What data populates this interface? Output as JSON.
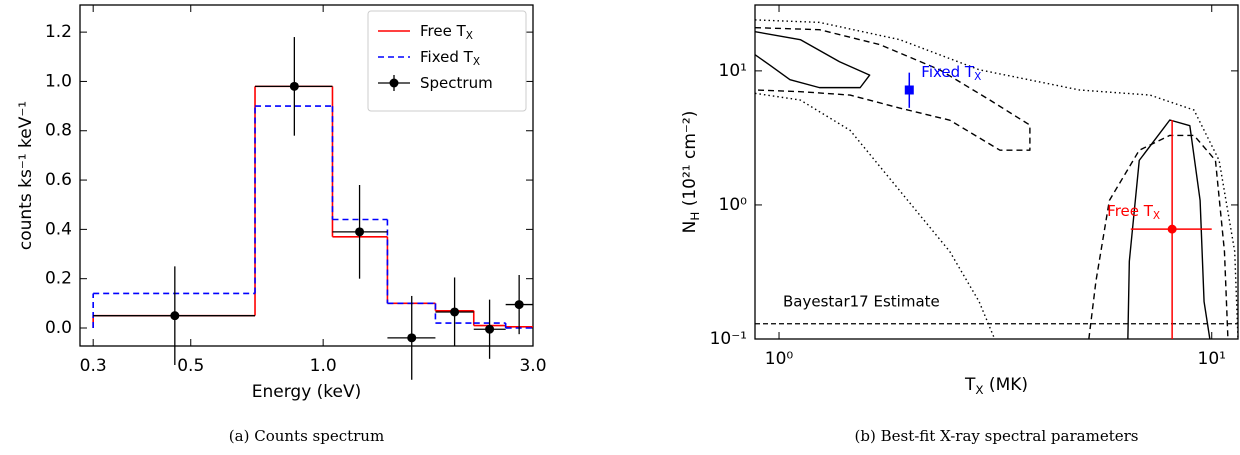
{
  "chart_data": [
    {
      "type": "histogram",
      "xlabel": "Energy (keV)",
      "ylabel": "counts ks⁻¹ keV⁻¹",
      "caption": "(a) Counts spectrum",
      "xscale": "log",
      "xlim": [
        0.28,
        3.0
      ],
      "xticks": [
        0.3,
        0.5,
        {
          "value": 1,
          "label": "1.0"
        },
        {
          "value": 3,
          "label": "3.0"
        }
      ],
      "ylim": [
        -0.073,
        1.31
      ],
      "yticks": [
        {
          "value": 0,
          "label": "0.0"
        },
        0.2,
        0.4,
        0.6,
        0.8,
        {
          "value": 1,
          "label": "1.0"
        },
        1.2
      ],
      "legend": "upper right",
      "bins": [
        0.3,
        0.7,
        1.05,
        1.4,
        1.8,
        2.2,
        2.6,
        3.0
      ],
      "series": [
        {
          "name": "Free T_X",
          "color": "#ff0000",
          "style": "solid",
          "values": [
            0.05,
            0.98,
            0.37,
            0.1,
            0.07,
            0.01,
            0.005
          ]
        },
        {
          "name": "Fixed T_X",
          "color": "#0000ff",
          "style": "dashed",
          "values": [
            0.14,
            0.9,
            0.44,
            0.1,
            0.02,
            0.02,
            0.0
          ]
        }
      ],
      "points": {
        "name": "Spectrum",
        "color": "#000000",
        "x": [
          0.46,
          0.86,
          1.21,
          1.59,
          1.99,
          2.39,
          2.79
        ],
        "values": [
          0.05,
          0.98,
          0.39,
          -0.04,
          0.065,
          -0.005,
          0.095
        ],
        "errors": [
          0.2,
          0.2,
          0.19,
          0.17,
          0.14,
          0.12,
          0.12
        ]
      }
    },
    {
      "type": "contour",
      "xlabel": "T_X (MK)",
      "ylabel": "N_H (10²¹ cm⁻²)",
      "caption": "(b) Best-fit X-ray spectral parameters",
      "xscale": "log",
      "yscale": "log",
      "xlim": [
        0.88,
        11.5
      ],
      "ylim": [
        0.1,
        31
      ],
      "xticks": [
        {
          "value": 1,
          "label": "10⁰"
        },
        {
          "value": 10,
          "label": "10¹"
        }
      ],
      "yticks": [
        {
          "value": 0.1,
          "label": "10⁻¹"
        },
        {
          "value": 1,
          "label": "10⁰"
        },
        {
          "value": 10,
          "label": "10¹"
        }
      ],
      "contours": [
        {
          "style": "solid",
          "x": [
            0.88,
            1.12,
            1.38,
            1.62,
            1.54,
            1.24,
            1.06,
            0.95,
            0.88
          ],
          "y": [
            19.6,
            17.1,
            11.7,
            9.3,
            7.5,
            7.5,
            8.6,
            11.1,
            13.2
          ]
        },
        {
          "style": "solid",
          "x": [
            6.4,
            6.45,
            6.8,
            8.0,
            8.9,
            9.4,
            9.6,
            9.9
          ],
          "y": [
            0.1,
            0.38,
            2.15,
            4.3,
            3.9,
            1.08,
            0.19,
            0.1
          ]
        },
        {
          "style": "dashed",
          "x": [
            0.88,
            1.24,
            1.71,
            2.35,
            3.07,
            3.8,
            3.8,
            3.24,
            2.48,
            1.9,
            1.46,
            1.12,
            0.88
          ],
          "y": [
            21,
            20.3,
            15.7,
            10.2,
            6.06,
            3.94,
            2.56,
            2.56,
            4.29,
            5.28,
            6.6,
            7.0,
            7.2
          ]
        },
        {
          "style": "dashed",
          "x": [
            5.2,
            5.4,
            5.8,
            6.8,
            8.0,
            9.1,
            10.2,
            10.7,
            10.9
          ],
          "y": [
            0.1,
            0.27,
            1.08,
            2.56,
            3.3,
            3.3,
            2.15,
            0.45,
            0.1
          ]
        },
        {
          "style": "dotted",
          "x": [
            0.88,
            1.24,
            1.9,
            2.9,
            4.95,
            7.2,
            9.1,
            10.4,
            11.3,
            11.5
          ],
          "y": [
            24,
            23,
            17.1,
            10.2,
            7.2,
            6.6,
            5.1,
            2.15,
            0.45,
            0.1
          ]
        },
        {
          "style": "dotted",
          "x": [
            0.88,
            1.12,
            1.46,
            1.9,
            2.48,
            2.9,
            3.15
          ],
          "y": [
            6.8,
            6.06,
            3.6,
            1.28,
            0.45,
            0.19,
            0.1
          ]
        }
      ],
      "points": [
        {
          "name": "Fixed T_X",
          "color": "#0000ff",
          "marker": "square",
          "x": 2.0,
          "y": 7.2,
          "ylow": 5.3,
          "yhigh": 9.7
        },
        {
          "name": "Free T_X",
          "color": "#ff0000",
          "marker": "circle",
          "x": 8.1,
          "y": 0.66,
          "xlow": 6.5,
          "xhigh": 10.0,
          "ylow": 0.1,
          "yhigh": 4.3
        }
      ],
      "reference": {
        "value": 0.13,
        "label": "Bayestar17 Estimate"
      }
    }
  ]
}
